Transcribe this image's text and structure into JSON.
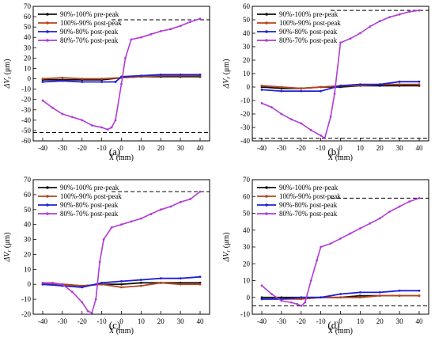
{
  "legend": [
    "90%-100% pre-peak",
    "100%-90% post-peak",
    "90%-80% post-peak",
    "80%-70% post-peak"
  ],
  "series_colors": [
    "#111111",
    "#b5451b",
    "#1f1fd6",
    "#b03cd6"
  ],
  "chart_data": [
    {
      "type": "line",
      "panel_label": "(a)",
      "xlabel": "X",
      "xunit": " (mm)",
      "ylabel": "ΔV",
      "ysub": "r",
      "yunit": " (μm)",
      "xlim": [
        -40,
        40
      ],
      "ylim": [
        -60,
        70
      ],
      "xticks": [
        -40,
        -30,
        -20,
        -10,
        0,
        10,
        20,
        30,
        40
      ],
      "yticks": [
        -60,
        -50,
        -40,
        -30,
        -20,
        -10,
        0,
        10,
        20,
        30,
        40,
        50,
        60,
        70
      ],
      "hlines": [
        57,
        -52
      ],
      "series": [
        {
          "name": "90%-100% pre-peak",
          "x": [
            -40,
            -30,
            -20,
            -10,
            0,
            10,
            20,
            30,
            40
          ],
          "y": [
            -1,
            -1,
            -1,
            -1,
            1,
            2,
            2,
            2,
            2
          ]
        },
        {
          "name": "100%-90% post-peak",
          "x": [
            -40,
            -30,
            -20,
            -10,
            0,
            10,
            20,
            30,
            40
          ],
          "y": [
            0,
            1,
            0,
            0,
            1,
            2,
            3,
            3,
            3
          ]
        },
        {
          "name": "90%-80% post-peak",
          "x": [
            -40,
            -30,
            -20,
            -10,
            -3,
            0,
            10,
            20,
            30,
            40
          ],
          "y": [
            -3,
            -2,
            -3,
            -3,
            -3,
            2,
            3,
            4,
            4,
            4
          ]
        },
        {
          "name": "80%-70% post-peak",
          "x": [
            -40,
            -35,
            -30,
            -25,
            -20,
            -15,
            -10,
            -7,
            -5,
            -3,
            0,
            2,
            5,
            10,
            15,
            20,
            25,
            30,
            35,
            40
          ],
          "y": [
            -21,
            -28,
            -34,
            -37,
            -40,
            -45,
            -47,
            -49,
            -47,
            -40,
            -5,
            20,
            38,
            40,
            43,
            46,
            48,
            51,
            55,
            58
          ]
        }
      ]
    },
    {
      "type": "line",
      "panel_label": "(b)",
      "xlabel": "X",
      "xunit": " (mm)",
      "ylabel": "ΔV",
      "ysub": "r",
      "yunit": " (μm)",
      "xlim": [
        -40,
        40
      ],
      "ylim": [
        -40,
        60
      ],
      "xticks": [
        -40,
        -30,
        -20,
        -10,
        0,
        10,
        20,
        30,
        40
      ],
      "yticks": [
        -40,
        -30,
        -20,
        -10,
        0,
        10,
        20,
        30,
        40,
        50,
        60
      ],
      "hlines": [
        57,
        -38
      ],
      "series": [
        {
          "name": "90%-100% pre-peak",
          "x": [
            -40,
            -30,
            -20,
            -10,
            0,
            10,
            20,
            30,
            40
          ],
          "y": [
            0,
            -1,
            -1,
            0,
            0,
            1,
            1,
            1,
            1
          ]
        },
        {
          "name": "100%-90% post-peak",
          "x": [
            -40,
            -30,
            -20,
            -10,
            0,
            10,
            20,
            30,
            40
          ],
          "y": [
            1,
            0,
            -1,
            0,
            1,
            1,
            2,
            2,
            2
          ]
        },
        {
          "name": "90%-80% post-peak",
          "x": [
            -40,
            -30,
            -20,
            -10,
            0,
            10,
            20,
            30,
            40
          ],
          "y": [
            -2,
            -3,
            -3,
            -3,
            1,
            2,
            2,
            4,
            4
          ]
        },
        {
          "name": "80%-70% post-peak",
          "x": [
            -40,
            -35,
            -30,
            -25,
            -20,
            -15,
            -10,
            -8,
            -5,
            -3,
            0,
            5,
            10,
            15,
            20,
            25,
            30,
            35,
            40
          ],
          "y": [
            -12,
            -15,
            -20,
            -24,
            -27,
            -32,
            -36,
            -38,
            -22,
            -5,
            33,
            36,
            40,
            45,
            49,
            52,
            54,
            56,
            57
          ]
        }
      ]
    },
    {
      "type": "line",
      "panel_label": "(c)",
      "xlabel": "X",
      "xunit": " (mm)",
      "ylabel": "ΔV",
      "ysub": "r",
      "yunit": " (μm)",
      "xlim": [
        -40,
        40
      ],
      "ylim": [
        -20,
        70
      ],
      "xticks": [
        -40,
        -30,
        -20,
        -10,
        0,
        10,
        20,
        30,
        40
      ],
      "yticks": [
        -20,
        -10,
        0,
        10,
        20,
        30,
        40,
        50,
        60,
        70
      ],
      "hlines": [
        62,
        -20
      ],
      "series": [
        {
          "name": "90%-100% pre-peak",
          "x": [
            -40,
            -30,
            -20,
            -10,
            0,
            10,
            20,
            30,
            40
          ],
          "y": [
            0,
            0,
            -1,
            0,
            0,
            1,
            1,
            1,
            1
          ]
        },
        {
          "name": "100%-90% post-peak",
          "x": [
            -40,
            -30,
            -20,
            -10,
            0,
            10,
            20,
            30,
            40
          ],
          "y": [
            0,
            0,
            -1,
            0,
            -2,
            -1,
            1,
            0,
            0
          ]
        },
        {
          "name": "90%-80% post-peak",
          "x": [
            -40,
            -30,
            -20,
            -10,
            0,
            10,
            20,
            30,
            40
          ],
          "y": [
            0,
            -1,
            -2,
            1,
            2,
            3,
            4,
            4,
            5
          ]
        },
        {
          "name": "80%-70% post-peak",
          "x": [
            -40,
            -35,
            -30,
            -25,
            -20,
            -17,
            -15,
            -13,
            -11,
            -9,
            -5,
            0,
            5,
            10,
            15,
            20,
            25,
            30,
            35,
            40
          ],
          "y": [
            1,
            1,
            0,
            -5,
            -12,
            -18,
            -19,
            -10,
            15,
            30,
            38,
            40,
            42,
            44,
            47,
            50,
            52,
            55,
            57,
            62
          ]
        }
      ]
    },
    {
      "type": "line",
      "panel_label": "(d)",
      "xlabel": "X",
      "xunit": " (mm)",
      "ylabel": "ΔV",
      "ysub": "r",
      "yunit": " (μm)",
      "xlim": [
        -40,
        40
      ],
      "ylim": [
        -10,
        70
      ],
      "xticks": [
        -40,
        -30,
        -20,
        -10,
        0,
        10,
        20,
        30,
        40
      ],
      "yticks": [
        -10,
        0,
        10,
        20,
        30,
        40,
        50,
        60,
        70
      ],
      "hlines": [
        59,
        -5
      ],
      "series": [
        {
          "name": "90%-100% pre-peak",
          "x": [
            -40,
            -30,
            -20,
            -10,
            0,
            10,
            20,
            30,
            40
          ],
          "y": [
            0,
            0,
            0,
            0,
            0,
            1,
            1,
            1,
            1
          ]
        },
        {
          "name": "100%-90% post-peak",
          "x": [
            -40,
            -30,
            -20,
            -10,
            0,
            10,
            20,
            30,
            40
          ],
          "y": [
            -1,
            -1,
            -1,
            0,
            0,
            0,
            1,
            1,
            1
          ]
        },
        {
          "name": "90%-80% post-peak",
          "x": [
            -40,
            -30,
            -20,
            -10,
            0,
            10,
            20,
            30,
            40
          ],
          "y": [
            -1,
            -1,
            0,
            0,
            2,
            3,
            3,
            4,
            4
          ]
        },
        {
          "name": "80%-70% post-peak",
          "x": [
            -40,
            -35,
            -30,
            -25,
            -22,
            -20,
            -18,
            -15,
            -12,
            -10,
            -5,
            0,
            5,
            10,
            15,
            20,
            25,
            30,
            35,
            40
          ],
          "y": [
            7,
            2,
            -2,
            -3,
            -4,
            -5,
            -3,
            10,
            22,
            30,
            32,
            35,
            38,
            41,
            44,
            47,
            51,
            54,
            57,
            59
          ]
        }
      ]
    }
  ]
}
